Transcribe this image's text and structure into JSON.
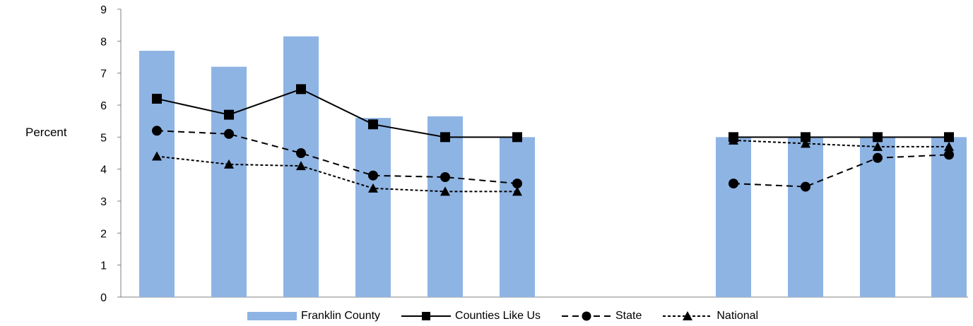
{
  "chart_data": {
    "type": "bar",
    "ylabel": "Percent",
    "ylim": [
      0,
      9
    ],
    "yticks": [
      "0",
      "1",
      "2",
      "3",
      "4",
      "5",
      "6",
      "7",
      "8",
      "9"
    ],
    "grid": false,
    "legend_position": "bottom",
    "groups": [
      {
        "categories": [
          "",
          "",
          "",
          "",
          "",
          ""
        ],
        "bars": {
          "name": "Franklin County",
          "values": [
            7.7,
            7.2,
            8.15,
            5.6,
            5.65,
            5.0
          ]
        },
        "lines": [
          {
            "name": "Counties Like Us",
            "values": [
              6.2,
              5.7,
              6.5,
              5.4,
              5.0,
              5.0
            ]
          },
          {
            "name": "State",
            "values": [
              5.2,
              5.1,
              4.5,
              3.8,
              3.75,
              3.55
            ]
          },
          {
            "name": "National",
            "values": [
              4.4,
              4.15,
              4.1,
              3.4,
              3.3,
              3.3
            ]
          }
        ]
      },
      {
        "categories": [
          "",
          "",
          "",
          ""
        ],
        "bars": {
          "name": "Franklin County",
          "values": [
            5.0,
            5.0,
            5.0,
            5.0
          ]
        },
        "lines": [
          {
            "name": "Counties Like Us",
            "values": [
              5.0,
              5.0,
              5.0,
              5.0
            ]
          },
          {
            "name": "State",
            "values": [
              3.55,
              3.45,
              4.35,
              4.45
            ]
          },
          {
            "name": "National",
            "values": [
              4.9,
              4.8,
              4.7,
              4.7
            ]
          }
        ]
      }
    ],
    "colors": {
      "bar": "#8EB4E3",
      "line": "#000000"
    }
  },
  "legend": {
    "items": [
      "Franklin County",
      "Counties Like Us",
      "State",
      "National"
    ]
  }
}
